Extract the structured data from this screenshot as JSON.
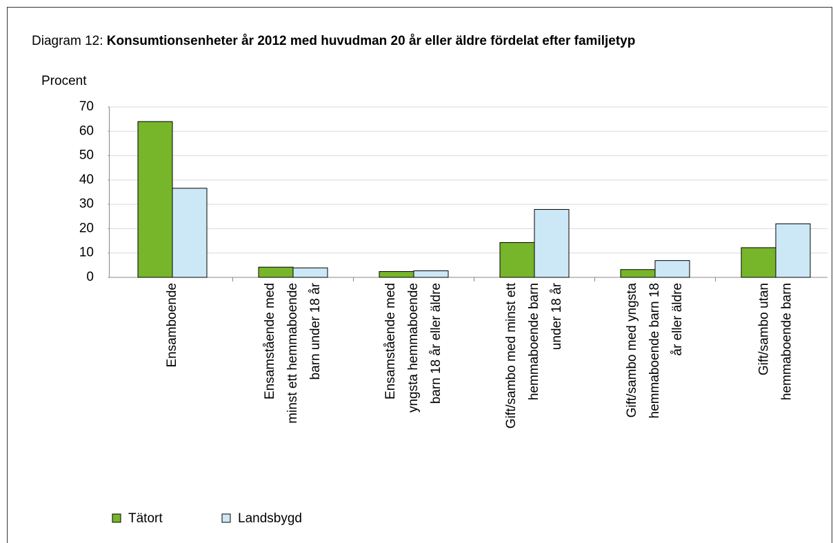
{
  "chart_data": {
    "type": "bar",
    "title_prefix": "Diagram 12:",
    "title": "Konsumtionsenheter år 2012 med huvudman 20 år eller äldre fördelat efter familjetyp",
    "y_label": "Procent",
    "categories": [
      [
        "Ensamboende"
      ],
      [
        "Ensamstående med",
        "minst ett hemmaboende",
        "barn under 18 år"
      ],
      [
        "Ensamstående med",
        "yngsta hemmaboende",
        "barn 18 år eller äldre"
      ],
      [
        "Gift/sambo med minst ett",
        "hemmaboende barn",
        "under 18 år"
      ],
      [
        "Gift/sambo med yngsta",
        "hemmaboende barn 18",
        "år eller äldre"
      ],
      [
        "Gift/sambo utan",
        "hemmaboende barn"
      ]
    ],
    "series": [
      {
        "name": "Tätort",
        "color": "#77b52a",
        "values": [
          64,
          4.2,
          2.4,
          14.3,
          3.2,
          12.2
        ]
      },
      {
        "name": "Landsbygd",
        "color": "#cce7f6",
        "values": [
          36.6,
          3.9,
          2.7,
          27.9,
          6.9,
          22
        ]
      }
    ],
    "ylim": [
      0,
      70
    ],
    "yticks": [
      0,
      10,
      20,
      30,
      40,
      50,
      60,
      70
    ],
    "grid": true,
    "legend": "bottom-left"
  }
}
